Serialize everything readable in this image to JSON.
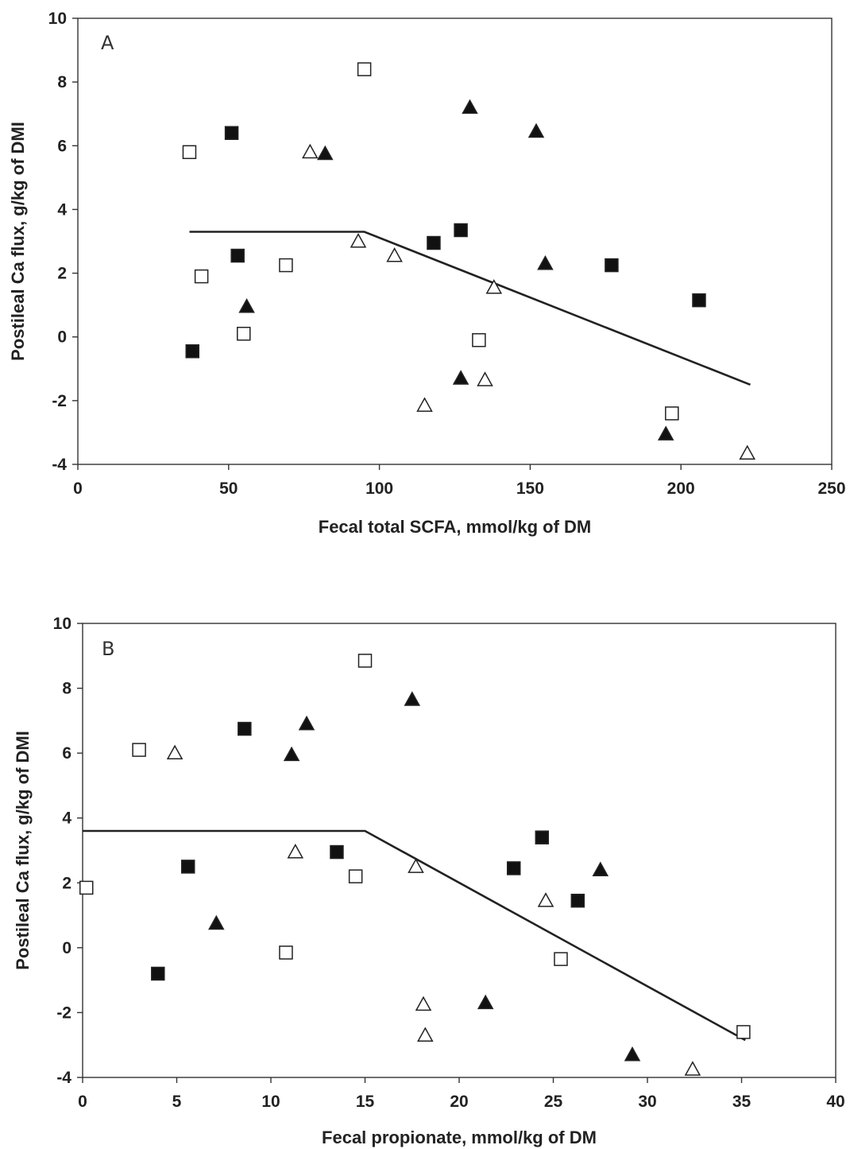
{
  "chart_data": [
    {
      "type": "scatter",
      "panel_label": "A",
      "xlabel": "Fecal total SCFA, mmol/kg of DM",
      "ylabel": "Postileal Ca flux, g/kg of DMI",
      "xlim": [
        0,
        250
      ],
      "ylim": [
        -4,
        10
      ],
      "xticks": [
        0,
        50,
        100,
        150,
        200,
        250
      ],
      "yticks": [
        -4,
        -2,
        0,
        2,
        4,
        6,
        8,
        10
      ],
      "grid": false,
      "series": [
        {
          "marker": "filled-square",
          "points": [
            [
              51,
              6.4
            ],
            [
              53,
              2.55
            ],
            [
              38,
              -0.45
            ],
            [
              118,
              2.95
            ],
            [
              127,
              3.35
            ],
            [
              177,
              2.25
            ],
            [
              206,
              1.15
            ]
          ]
        },
        {
          "marker": "open-square",
          "points": [
            [
              37,
              5.8
            ],
            [
              41,
              1.9
            ],
            [
              55,
              0.1
            ],
            [
              69,
              2.25
            ],
            [
              95,
              8.4
            ],
            [
              133,
              -0.1
            ],
            [
              197,
              -2.4
            ]
          ]
        },
        {
          "marker": "filled-triangle",
          "points": [
            [
              82,
              5.75
            ],
            [
              56,
              0.95
            ],
            [
              130,
              7.2
            ],
            [
              152,
              6.45
            ],
            [
              155,
              2.3
            ],
            [
              127,
              -1.3
            ],
            [
              195,
              -3.05
            ]
          ]
        },
        {
          "marker": "open-triangle",
          "points": [
            [
              77,
              5.8
            ],
            [
              93,
              3.0
            ],
            [
              105,
              2.55
            ],
            [
              138,
              1.55
            ],
            [
              115,
              -2.15
            ],
            [
              135,
              -1.35
            ],
            [
              222,
              -3.65
            ]
          ]
        }
      ],
      "fit_line": {
        "x": [
          37,
          95,
          223
        ],
        "y": [
          3.3,
          3.3,
          -1.5
        ]
      }
    },
    {
      "type": "scatter",
      "panel_label": "B",
      "xlabel": "Fecal propionate, mmol/kg of DM",
      "ylabel": "Postileal Ca flux, g/kg of DMI",
      "xlim": [
        0,
        40
      ],
      "ylim": [
        -4,
        10
      ],
      "xticks": [
        0,
        5,
        10,
        15,
        20,
        25,
        30,
        35,
        40
      ],
      "yticks": [
        -4,
        -2,
        0,
        2,
        4,
        6,
        8,
        10
      ],
      "grid": false,
      "series": [
        {
          "marker": "filled-square",
          "points": [
            [
              8.6,
              6.75
            ],
            [
              5.6,
              2.5
            ],
            [
              4.0,
              -0.8
            ],
            [
              13.5,
              2.95
            ],
            [
              22.9,
              2.45
            ],
            [
              24.4,
              3.4
            ],
            [
              26.3,
              1.45
            ]
          ]
        },
        {
          "marker": "open-square",
          "points": [
            [
              3.0,
              6.1
            ],
            [
              0.2,
              1.85
            ],
            [
              15.0,
              8.85
            ],
            [
              14.5,
              2.2
            ],
            [
              10.8,
              -0.15
            ],
            [
              25.4,
              -0.35
            ],
            [
              35.1,
              -2.6
            ]
          ]
        },
        {
          "marker": "filled-triangle",
          "points": [
            [
              11.1,
              5.95
            ],
            [
              11.9,
              6.9
            ],
            [
              17.5,
              7.65
            ],
            [
              7.1,
              0.75
            ],
            [
              27.5,
              2.4
            ],
            [
              21.4,
              -1.7
            ],
            [
              29.2,
              -3.3
            ]
          ]
        },
        {
          "marker": "open-triangle",
          "points": [
            [
              4.9,
              6.0
            ],
            [
              11.3,
              2.95
            ],
            [
              17.7,
              2.5
            ],
            [
              24.6,
              1.45
            ],
            [
              18.1,
              -1.75
            ],
            [
              18.2,
              -2.7
            ],
            [
              32.4,
              -3.75
            ]
          ]
        }
      ],
      "fit_line": {
        "x": [
          0,
          15,
          35.2
        ],
        "y": [
          3.6,
          3.6,
          -2.85
        ]
      }
    }
  ]
}
